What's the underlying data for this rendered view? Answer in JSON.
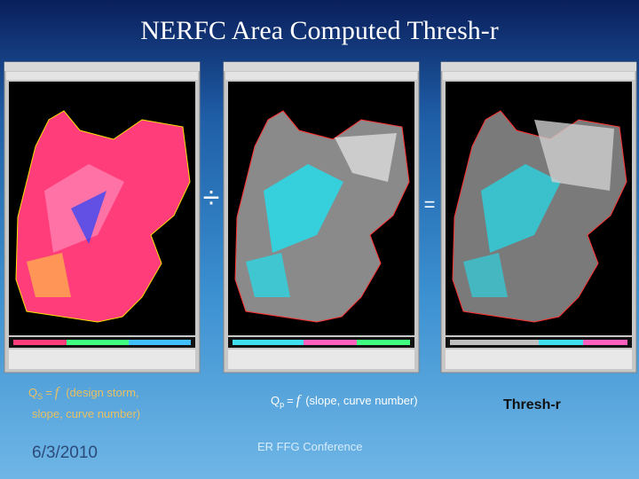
{
  "title": "NERFC Area Computed Thresh-r",
  "operators": {
    "divide": "÷",
    "equals": "="
  },
  "captions": [
    {
      "symbol": "Q",
      "subscript": "S",
      "equals": "=",
      "function": "f",
      "args_line1": "(design storm,",
      "args_line2": "slope, curve number)"
    },
    {
      "symbol": "Q",
      "subscript": "p",
      "equals": "=",
      "function": "f",
      "args": "(slope, curve number)"
    },
    {
      "label": "Thresh-r"
    }
  ],
  "footer": {
    "date": "6/3/2010",
    "event": "ER FFG Conference"
  }
}
